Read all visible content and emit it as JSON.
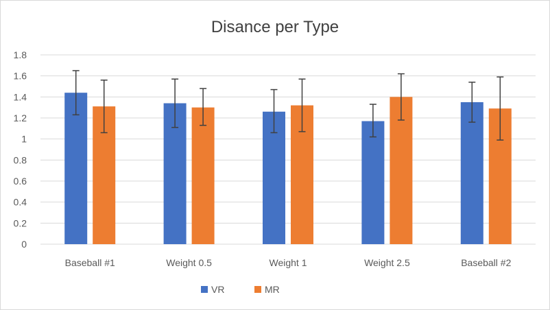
{
  "chart_data": {
    "type": "bar",
    "title": "Disance per Type",
    "categories": [
      "Baseball #1",
      "Weight 0.5",
      "Weight 1",
      "Weight 2.5",
      "Baseball #2"
    ],
    "series": [
      {
        "name": "VR",
        "color": "#4472c4",
        "values": [
          1.44,
          1.34,
          1.26,
          1.17,
          1.35
        ],
        "err_low": [
          1.23,
          1.11,
          1.06,
          1.02,
          1.16
        ],
        "err_high": [
          1.65,
          1.57,
          1.47,
          1.33,
          1.54
        ]
      },
      {
        "name": "MR",
        "color": "#ed7d31",
        "values": [
          1.31,
          1.3,
          1.32,
          1.4,
          1.29
        ],
        "err_low": [
          1.06,
          1.13,
          1.07,
          1.18,
          0.99
        ],
        "err_high": [
          1.56,
          1.48,
          1.57,
          1.62,
          1.59
        ]
      }
    ],
    "ylim": [
      0,
      1.8
    ],
    "yticks": [
      "0",
      "0.2",
      "0.4",
      "0.6",
      "0.8",
      "1",
      "1.2",
      "1.4",
      "1.6",
      "1.8"
    ],
    "grid": true,
    "legend_position": "bottom",
    "gridline_color": "#d9d9d9",
    "errorbar_color": "#404040"
  }
}
